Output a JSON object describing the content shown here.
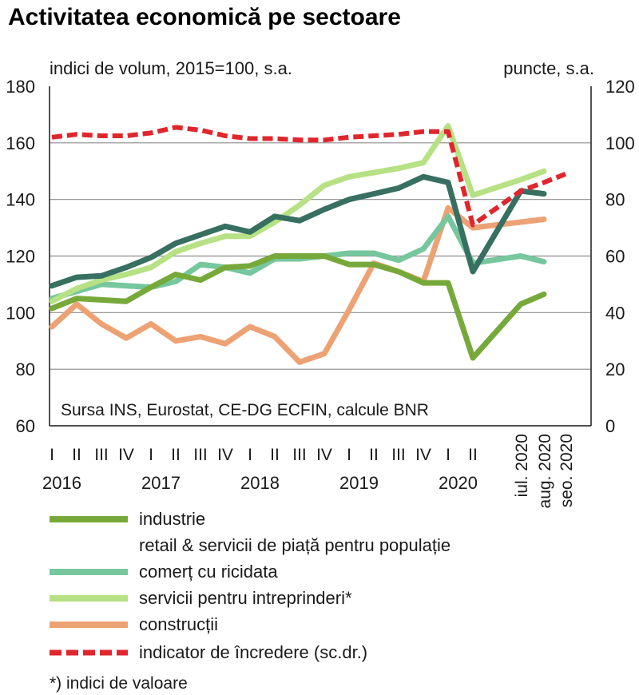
{
  "chart_data": {
    "type": "line",
    "title": "Activitatea economică pe sectoare",
    "left_axis_label": "indici de volum, 2015=100, s.a.",
    "right_axis_label": "puncte, s.a.",
    "source": "Sursa INS, Eurostat, CE-DG ECFIN, calcule BNR",
    "footnote": "*) indici de valoare",
    "ylim_left": [
      60,
      180
    ],
    "ylim_right": [
      0,
      120
    ],
    "yticks_left": [
      "180",
      "160",
      "140",
      "120",
      "100",
      "80",
      "60"
    ],
    "yticks_right": [
      "120",
      "100",
      "80",
      "60",
      "40",
      "20",
      "0"
    ],
    "grid": true,
    "legend_position": "bottom",
    "quarter_labels": [
      "I",
      "II",
      "III",
      "IV",
      "I",
      "II",
      "III",
      "IV",
      "I",
      "II",
      "III",
      "IV",
      "I",
      "II",
      "III",
      "IV",
      "I",
      "II"
    ],
    "year_labels": [
      "2016",
      "2017",
      "2018",
      "2019",
      "2020"
    ],
    "month_labels": [
      "iul. 2020",
      "aug. 2020",
      "seo. 2020"
    ],
    "x": [
      "2016 I",
      "2016 II",
      "2016 III",
      "2016 IV",
      "2017 I",
      "2017 II",
      "2017 III",
      "2017 IV",
      "2018 I",
      "2018 II",
      "2018 III",
      "2018 IV",
      "2019 I",
      "2019 II",
      "2019 III",
      "2019 IV",
      "2020 I",
      "2020 II",
      "iul. 2020",
      "aug. 2020",
      "seo. 2020"
    ],
    "series": [
      {
        "name": "industrie",
        "axis": "left",
        "color": "#77a93a",
        "dashed": false,
        "values": [
          101.5,
          105,
          104.5,
          104,
          109,
          113.5,
          111.5,
          116,
          116.5,
          120,
          120,
          120,
          117,
          117,
          114.5,
          110.5,
          110.5,
          84,
          103,
          106.5,
          null
        ]
      },
      {
        "name": "retail & servicii de piață pentru populație",
        "axis": "left",
        "color": "#376f60",
        "dashed": false,
        "values": [
          109.5,
          112.5,
          113,
          116,
          119.5,
          124.5,
          127.5,
          130.5,
          128.5,
          134,
          132.5,
          136.5,
          140,
          142,
          144,
          148,
          146,
          114.5,
          143,
          142,
          null
        ]
      },
      {
        "name": "comerț cu ricidata",
        "axis": "left",
        "color": "#76c79e",
        "dashed": false,
        "values": [
          105,
          107.5,
          110,
          109.5,
          109,
          111,
          117,
          116,
          114,
          119,
          119,
          120,
          121,
          121,
          118.5,
          122.5,
          134,
          117.5,
          120,
          118,
          null
        ]
      },
      {
        "name": "servicii pentru intreprinderi*",
        "axis": "left",
        "color": "#b6e184",
        "dashed": false,
        "values": [
          104,
          108.5,
          111.5,
          113.5,
          116,
          121.5,
          124.5,
          127,
          127,
          132,
          138,
          145,
          148,
          149.5,
          151,
          153,
          166,
          141.5,
          147,
          150,
          null
        ]
      },
      {
        "name": "construcții",
        "axis": "left",
        "color": "#eda274",
        "dashed": false,
        "values": [
          95,
          103,
          96,
          91,
          96,
          90,
          91.5,
          89,
          95,
          91.5,
          82.5,
          85.5,
          101,
          117.5,
          114.5,
          111,
          137,
          130,
          132,
          133,
          null
        ]
      },
      {
        "name": "indicator de încredere (sc.dr.)",
        "axis": "right",
        "color": "#e0262d",
        "dashed": true,
        "values": [
          102,
          103,
          102.5,
          102.5,
          103.5,
          105.5,
          104.5,
          102.5,
          101.5,
          101.5,
          101,
          101,
          102,
          102.5,
          103,
          104,
          104,
          71,
          83,
          86,
          89
        ]
      }
    ]
  }
}
